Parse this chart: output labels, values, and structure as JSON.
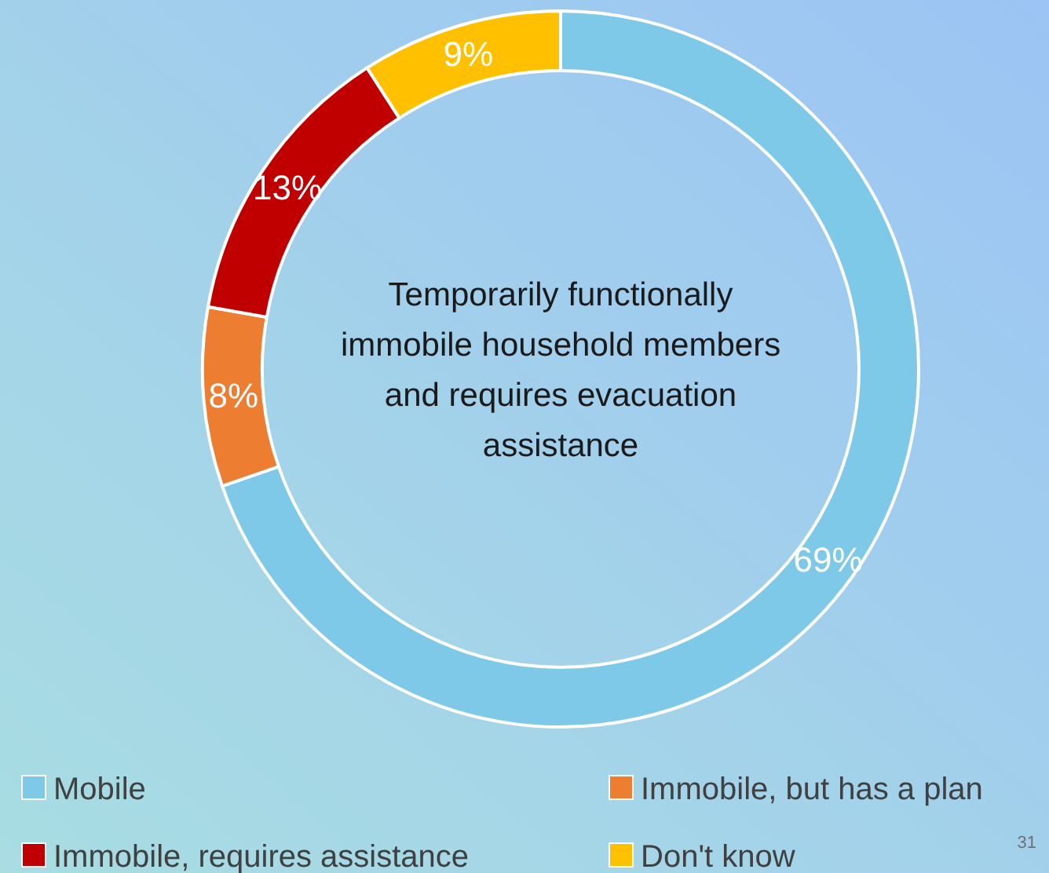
{
  "chart_data": {
    "type": "donut",
    "title": "Temporarily functionally immobile household members and requires evacuation assistance",
    "categories": [
      "Mobile",
      "Immobile, but has a plan",
      "Immobile, requires assistance",
      "Don't know"
    ],
    "values": [
      69,
      8,
      13,
      9
    ],
    "colors": [
      "#7ec8e8",
      "#ed7d31",
      "#c00000",
      "#ffc000"
    ],
    "value_labels": [
      "69%",
      "8%",
      "13%",
      "9%"
    ],
    "legend": "bottom",
    "annotations": [
      "31"
    ]
  }
}
